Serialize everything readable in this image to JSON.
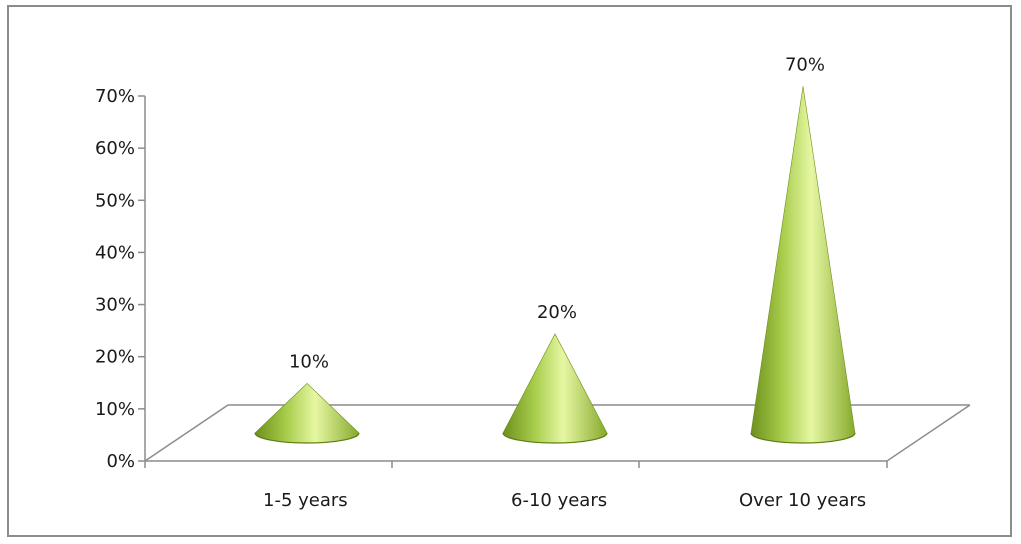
{
  "chart_data": {
    "type": "bar",
    "style": "3d-cone",
    "categories": [
      "1-5 years",
      "6-10 years",
      "Over 10 years"
    ],
    "values": [
      10,
      20,
      70
    ],
    "data_labels": [
      "10%",
      "20%",
      "70%"
    ],
    "y_ticks": [
      "0%",
      "10%",
      "20%",
      "30%",
      "40%",
      "50%",
      "60%",
      "70%"
    ],
    "ylim": [
      0,
      70
    ],
    "title": "",
    "xlabel": "",
    "ylabel": "",
    "grid": false,
    "legend": "none",
    "colors": {
      "cone_dark": "#6e8f1e",
      "cone_mid": "#a7cc4a",
      "cone_light": "#e6f7a3",
      "axis": "#8c8c8c"
    }
  }
}
